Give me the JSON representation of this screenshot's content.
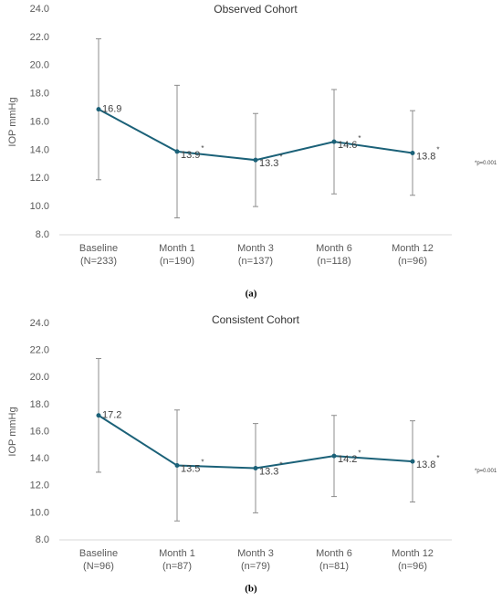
{
  "chart_data": [
    {
      "type": "line",
      "title": "Observed Cohort",
      "ylabel": "IOP mmHg",
      "caption": "(a)",
      "categories": [
        "Baseline",
        "Month 1",
        "Month 3",
        "Month 6",
        "Month 12"
      ],
      "category_counts": [
        "(N=233)",
        "(n=190)",
        "(n=137)",
        "(n=118)",
        "(n=96)"
      ],
      "values": [
        16.9,
        13.9,
        13.3,
        14.6,
        13.8
      ],
      "errors": [
        5.0,
        4.7,
        3.3,
        3.7,
        3.0
      ],
      "significance": [
        null,
        "*",
        "*",
        "*",
        "*"
      ],
      "annotation": "*p=0.001",
      "color": "#1b6178",
      "error_color": "#8c8c8c",
      "ylim": [
        8,
        24
      ],
      "yticks": [
        {
          "value": 8,
          "label": "8.0"
        },
        {
          "value": 10,
          "label": "10.0"
        },
        {
          "value": 12,
          "label": "12.0"
        },
        {
          "value": 14,
          "label": "14.0"
        },
        {
          "value": 16,
          "label": "16.0"
        },
        {
          "value": 18,
          "label": "18.0"
        },
        {
          "value": 20,
          "label": "20.0"
        },
        {
          "value": 22,
          "label": "22.0"
        },
        {
          "value": 24,
          "label": "24.0"
        }
      ]
    },
    {
      "type": "line",
      "title": "Consistent Cohort",
      "ylabel": "IOP mmHg",
      "caption": "(b)",
      "categories": [
        "Baseline",
        "Month 1",
        "Month 3",
        "Month 6",
        "Month 12"
      ],
      "category_counts": [
        "(N=96)",
        "(n=87)",
        "(n=79)",
        "(n=81)",
        "(n=96)"
      ],
      "values": [
        17.2,
        13.5,
        13.3,
        14.2,
        13.8
      ],
      "errors": [
        4.2,
        4.1,
        3.3,
        3.0,
        3.0
      ],
      "significance": [
        null,
        "*",
        "*",
        "*",
        "*"
      ],
      "annotation": "*p=0.001",
      "color": "#1b6178",
      "error_color": "#8c8c8c",
      "ylim": [
        8,
        24
      ],
      "yticks": [
        {
          "value": 8,
          "label": "8.0"
        },
        {
          "value": 10,
          "label": "10.0"
        },
        {
          "value": 12,
          "label": "12.0"
        },
        {
          "value": 14,
          "label": "14.0"
        },
        {
          "value": 16,
          "label": "16.0"
        },
        {
          "value": 18,
          "label": "18.0"
        },
        {
          "value": 20,
          "label": "20.0"
        },
        {
          "value": 22,
          "label": "22.0"
        },
        {
          "value": 24,
          "label": "24.0"
        }
      ]
    }
  ]
}
